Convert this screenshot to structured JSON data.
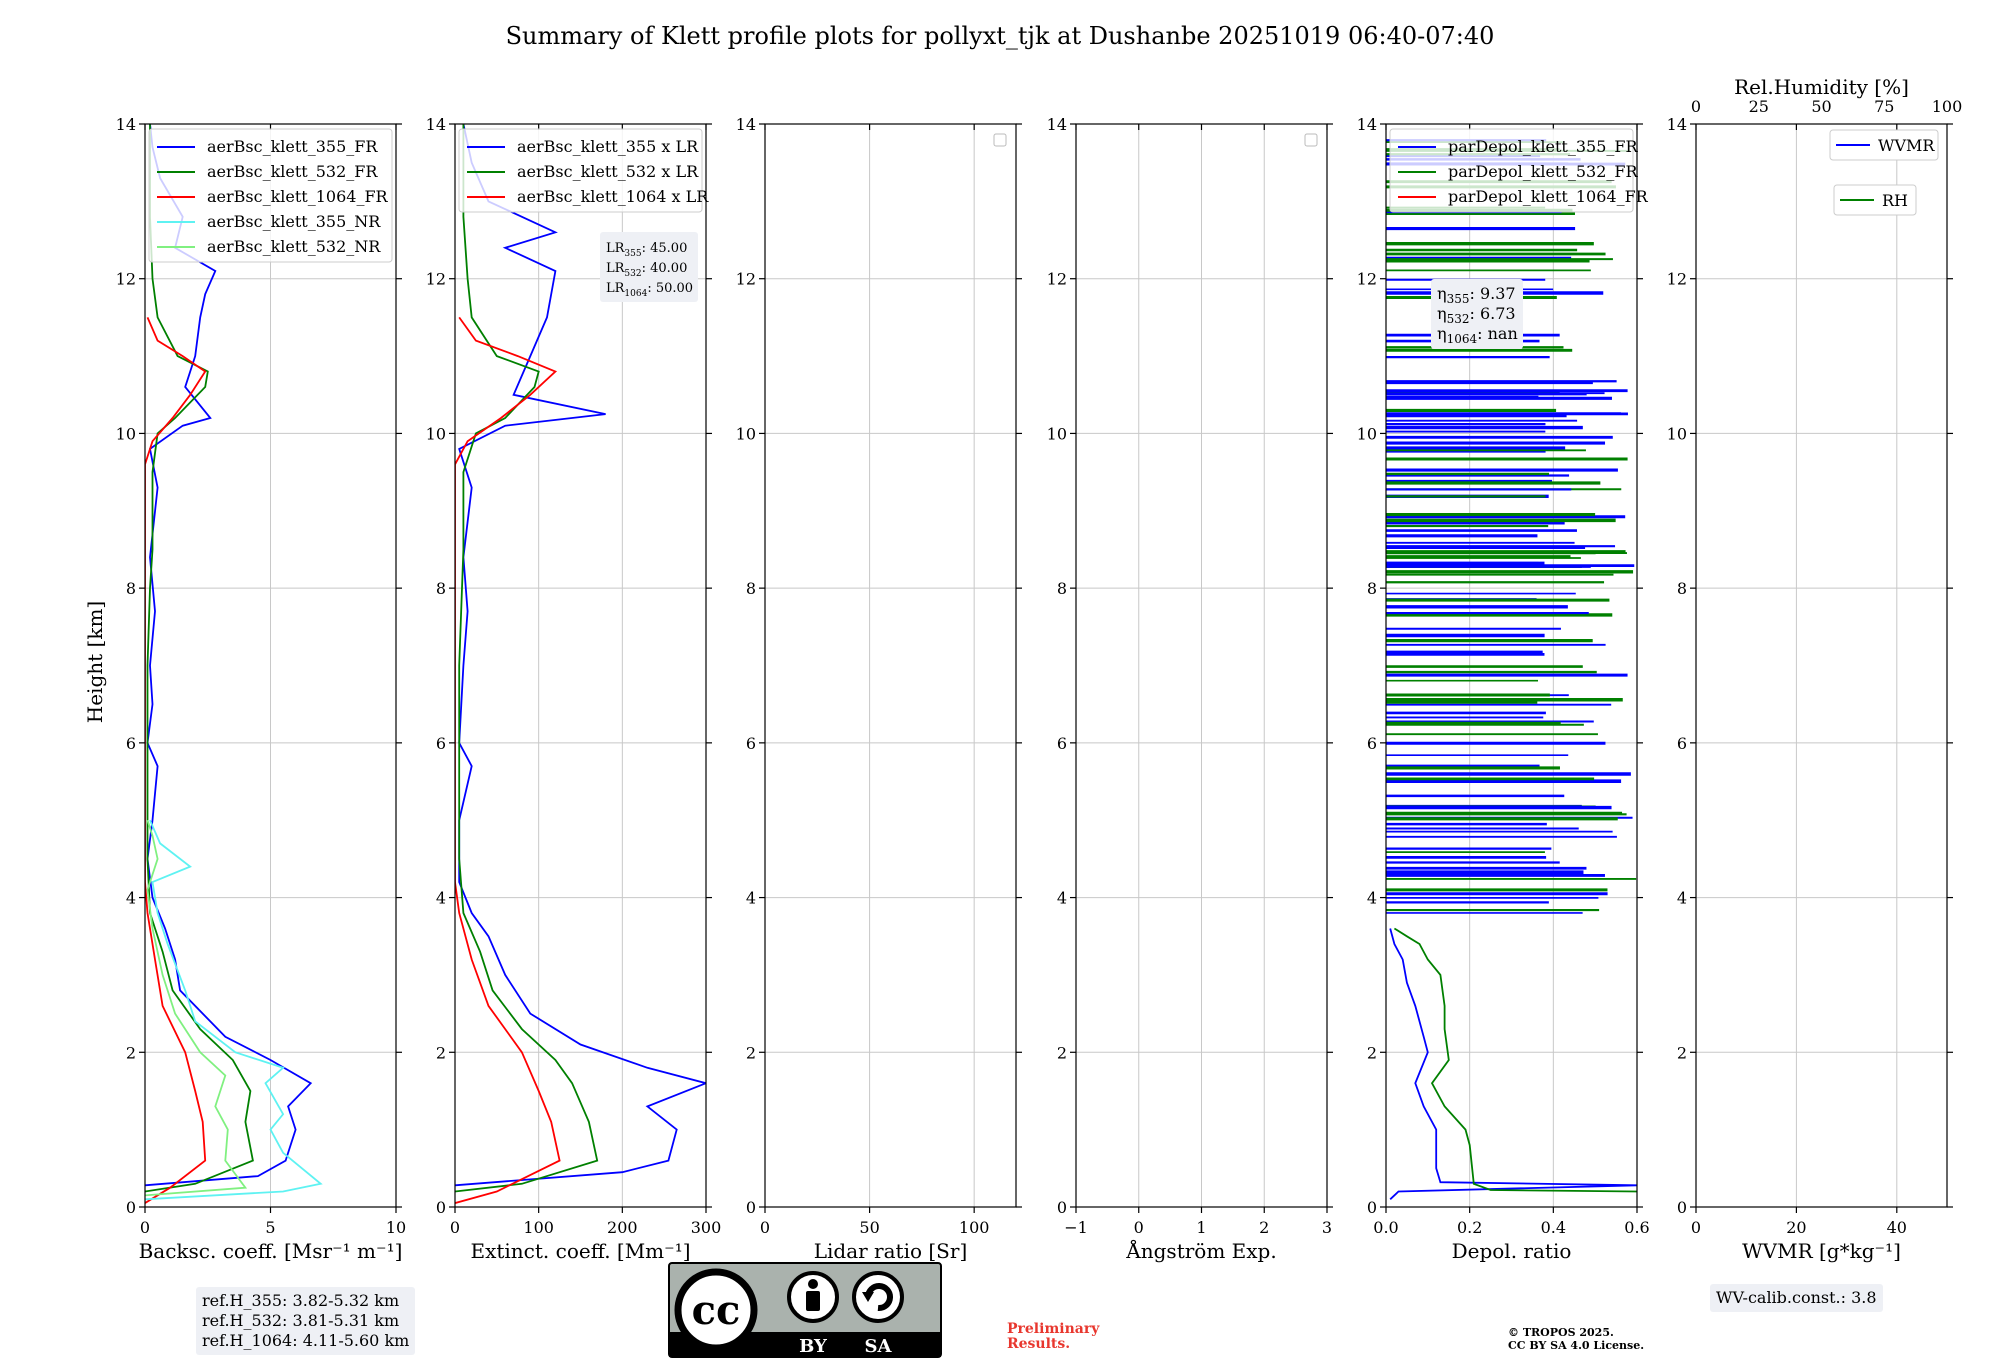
{
  "title": "Summary of Klett profile plots for pollyxt_tjk at Dushanbe 20251019 06:40-07:40",
  "ylabel": "Height [km]",
  "colors": {
    "blue": "#0000ff",
    "green": "#008000",
    "red": "#ff0000",
    "cyan": "#5ef2f2",
    "lightgreen": "#80f080"
  },
  "chart_data": [
    {
      "type": "line",
      "name": "backscatter",
      "xlabel": "Backsc. coeff. [Msr⁻¹ m⁻¹]",
      "xlim": [
        0,
        10
      ],
      "ylim": [
        0,
        14
      ],
      "xticks": [
        "0",
        "5",
        "10"
      ],
      "yticks": [
        "0",
        "2",
        "4",
        "6",
        "8",
        "10",
        "12",
        "14"
      ],
      "legend": [
        "aerBsc_klett_355_FR",
        "aerBsc_klett_532_FR",
        "aerBsc_klett_1064_FR",
        "aerBsc_klett_355_NR",
        "aerBsc_klett_532_NR"
      ],
      "series": [
        {
          "name": "aerBsc_klett_355_FR",
          "color": "#0000ff",
          "points": [
            [
              0,
              0.28
            ],
            [
              4.5,
              0.4
            ],
            [
              5.6,
              0.6
            ],
            [
              6,
              1.0
            ],
            [
              5.7,
              1.3
            ],
            [
              6.6,
              1.6
            ],
            [
              5,
              1.9
            ],
            [
              3.2,
              2.2
            ],
            [
              1.4,
              2.8
            ],
            [
              1.2,
              3.2
            ],
            [
              0.8,
              3.6
            ],
            [
              0.3,
              4.0
            ],
            [
              0.1,
              4.5
            ],
            [
              0.3,
              5.0
            ],
            [
              0.5,
              5.7
            ],
            [
              0.1,
              6.0
            ],
            [
              0.3,
              6.5
            ],
            [
              0.2,
              7.0
            ],
            [
              0.4,
              7.7
            ],
            [
              0.2,
              8.4
            ],
            [
              0.5,
              9.3
            ],
            [
              0.2,
              9.8
            ],
            [
              1.5,
              10.1
            ],
            [
              2.6,
              10.2
            ],
            [
              1.6,
              10.6
            ],
            [
              2,
              11.0
            ],
            [
              2.2,
              11.5
            ],
            [
              2.4,
              11.8
            ],
            [
              2.8,
              12.1
            ],
            [
              1.2,
              12.4
            ],
            [
              1.5,
              12.8
            ],
            [
              0.6,
              13.3
            ],
            [
              0.3,
              13.7
            ],
            [
              0.2,
              14
            ]
          ]
        },
        {
          "name": "aerBsc_klett_532_FR",
          "color": "#008000",
          "points": [
            [
              0,
              0.2
            ],
            [
              2,
              0.3
            ],
            [
              4.3,
              0.6
            ],
            [
              4,
              1.1
            ],
            [
              4.2,
              1.5
            ],
            [
              3.5,
              1.9
            ],
            [
              2.2,
              2.3
            ],
            [
              1.1,
              2.8
            ],
            [
              0.7,
              3.3
            ],
            [
              0.2,
              3.8
            ],
            [
              0.1,
              4.5
            ],
            [
              0.1,
              6
            ],
            [
              0.1,
              7
            ],
            [
              0.2,
              8
            ],
            [
              0.3,
              8.5
            ],
            [
              0.3,
              9.5
            ],
            [
              0.5,
              10.0
            ],
            [
              1.2,
              10.2
            ],
            [
              2.4,
              10.6
            ],
            [
              2.5,
              10.8
            ],
            [
              1.3,
              11.0
            ],
            [
              0.5,
              11.5
            ],
            [
              0.3,
              12.0
            ],
            [
              0.2,
              12.8
            ],
            [
              0.2,
              14
            ]
          ]
        },
        {
          "name": "aerBsc_klett_1064_FR",
          "color": "#ff0000",
          "points": [
            [
              0,
              0.05
            ],
            [
              1,
              0.25
            ],
            [
              2.4,
              0.6
            ],
            [
              2.3,
              1.1
            ],
            [
              2,
              1.5
            ],
            [
              1.6,
              2.0
            ],
            [
              0.7,
              2.6
            ],
            [
              0.4,
              3.2
            ],
            [
              0.1,
              3.8
            ],
            [
              0,
              4.2
            ],
            [
              0,
              9.6
            ],
            [
              0.3,
              9.9
            ],
            [
              1.1,
              10.2
            ],
            [
              1.8,
              10.5
            ],
            [
              2.4,
              10.8
            ],
            [
              1.5,
              11.0
            ],
            [
              0.5,
              11.2
            ],
            [
              0.1,
              11.5
            ]
          ]
        },
        {
          "name": "aerBsc_klett_355_NR",
          "color": "#5ef2f2",
          "points": [
            [
              0,
              0.1
            ],
            [
              5.5,
              0.2
            ],
            [
              7,
              0.3
            ],
            [
              5.5,
              0.7
            ],
            [
              5,
              1.0
            ],
            [
              5.5,
              1.2
            ],
            [
              4.8,
              1.6
            ],
            [
              5.5,
              1.8
            ],
            [
              3.6,
              2.0
            ],
            [
              2,
              2.4
            ],
            [
              1.6,
              2.8
            ],
            [
              0.9,
              3.4
            ],
            [
              0.5,
              3.8
            ],
            [
              0.3,
              4.2
            ],
            [
              1.8,
              4.4
            ],
            [
              0.6,
              4.7
            ],
            [
              0.2,
              5.0
            ]
          ]
        },
        {
          "name": "aerBsc_klett_532_NR",
          "color": "#80f080",
          "points": [
            [
              0,
              0.15
            ],
            [
              4,
              0.25
            ],
            [
              3.2,
              0.6
            ],
            [
              3.3,
              1.0
            ],
            [
              2.8,
              1.3
            ],
            [
              3.2,
              1.7
            ],
            [
              2.2,
              2.0
            ],
            [
              1.2,
              2.5
            ],
            [
              0.7,
              3.0
            ],
            [
              0.3,
              3.6
            ],
            [
              0.1,
              4.1
            ],
            [
              0.5,
              4.5
            ],
            [
              0.3,
              4.8
            ],
            [
              0.1,
              5.0
            ]
          ]
        }
      ],
      "annotation": [
        "ref.H_355: 3.82-5.32 km",
        "ref.H_532: 3.81-5.31 km",
        "ref.H_1064: 4.11-5.60 km"
      ]
    },
    {
      "type": "line",
      "name": "extinction",
      "xlabel": "Extinct. coeff. [Mm⁻¹]",
      "xlim": [
        0,
        300
      ],
      "ylim": [
        0,
        14
      ],
      "xticks": [
        "0",
        "100",
        "200",
        "300"
      ],
      "yticks": [
        "0",
        "2",
        "4",
        "6",
        "8",
        "10",
        "12",
        "14"
      ],
      "legend": [
        "aerBsc_klett_355 x LR",
        "aerBsc_klett_532 x LR",
        "aerBsc_klett_1064 x LR"
      ],
      "series": [
        {
          "name": "aerBsc_klett_355 x LR",
          "color": "#0000ff",
          "points": [
            [
              0,
              0.28
            ],
            [
              200,
              0.45
            ],
            [
              255,
              0.6
            ],
            [
              265,
              1.0
            ],
            [
              230,
              1.3
            ],
            [
              300,
              1.6
            ],
            [
              230,
              1.8
            ],
            [
              150,
              2.1
            ],
            [
              90,
              2.5
            ],
            [
              60,
              3.0
            ],
            [
              40,
              3.5
            ],
            [
              20,
              3.8
            ],
            [
              5,
              4.2
            ],
            [
              5,
              5.0
            ],
            [
              20,
              5.7
            ],
            [
              5,
              6.0
            ],
            [
              10,
              7.0
            ],
            [
              15,
              7.7
            ],
            [
              10,
              8.4
            ],
            [
              20,
              9.3
            ],
            [
              5,
              9.8
            ],
            [
              60,
              10.1
            ],
            [
              180,
              10.25
            ],
            [
              70,
              10.5
            ],
            [
              90,
              11.0
            ],
            [
              110,
              11.5
            ],
            [
              120,
              12.1
            ],
            [
              60,
              12.4
            ],
            [
              120,
              12.6
            ],
            [
              40,
              13.0
            ],
            [
              20,
              13.5
            ],
            [
              10,
              14
            ]
          ]
        },
        {
          "name": "aerBsc_klett_532 x LR",
          "color": "#008000",
          "points": [
            [
              0,
              0.2
            ],
            [
              80,
              0.3
            ],
            [
              170,
              0.6
            ],
            [
              160,
              1.1
            ],
            [
              140,
              1.6
            ],
            [
              120,
              1.9
            ],
            [
              80,
              2.3
            ],
            [
              45,
              2.8
            ],
            [
              30,
              3.3
            ],
            [
              10,
              3.8
            ],
            [
              5,
              4.5
            ],
            [
              5,
              7
            ],
            [
              10,
              8.5
            ],
            [
              10,
              9.5
            ],
            [
              25,
              10.0
            ],
            [
              60,
              10.2
            ],
            [
              95,
              10.6
            ],
            [
              100,
              10.8
            ],
            [
              50,
              11.0
            ],
            [
              20,
              11.5
            ],
            [
              15,
              12.0
            ],
            [
              10,
              12.8
            ],
            [
              10,
              14
            ]
          ]
        },
        {
          "name": "aerBsc_klett_1064 x LR",
          "color": "#ff0000",
          "points": [
            [
              0,
              0.05
            ],
            [
              50,
              0.2
            ],
            [
              125,
              0.6
            ],
            [
              115,
              1.1
            ],
            [
              100,
              1.5
            ],
            [
              80,
              2.0
            ],
            [
              40,
              2.6
            ],
            [
              20,
              3.2
            ],
            [
              5,
              3.8
            ],
            [
              0,
              4.2
            ],
            [
              0,
              9.6
            ],
            [
              15,
              9.9
            ],
            [
              55,
              10.2
            ],
            [
              90,
              10.5
            ],
            [
              120,
              10.8
            ],
            [
              75,
              11.0
            ],
            [
              25,
              11.2
            ],
            [
              5,
              11.5
            ]
          ]
        }
      ],
      "lr_box": [
        {
          "label": "LR",
          "sub": "355",
          "value": ": 45.00"
        },
        {
          "label": "LR",
          "sub": "532",
          "value": ": 40.00"
        },
        {
          "label": "LR",
          "sub": "1064",
          "value": ": 50.00"
        }
      ]
    },
    {
      "type": "line",
      "name": "lidar-ratio",
      "xlabel": "Lidar ratio [Sr]",
      "xlim": [
        0,
        120
      ],
      "ylim": [
        0,
        14
      ],
      "xticks": [
        "0",
        "50",
        "100"
      ],
      "yticks": [
        "0",
        "2",
        "4",
        "6",
        "8",
        "10",
        "12",
        "14"
      ],
      "series": []
    },
    {
      "type": "line",
      "name": "angstrom",
      "xlabel": "Ångström Exp.",
      "xlim": [
        -1,
        3
      ],
      "ylim": [
        0,
        14
      ],
      "xticks": [
        "−1",
        "0",
        "1",
        "2",
        "3"
      ],
      "yticks": [
        "0",
        "2",
        "4",
        "6",
        "8",
        "10",
        "12",
        "14"
      ],
      "series": []
    },
    {
      "type": "line",
      "name": "depol",
      "xlabel": "Depol. ratio",
      "xlim": [
        0,
        0.6
      ],
      "ylim": [
        0,
        14
      ],
      "xticks": [
        "0.0",
        "0.2",
        "0.4",
        "0.6"
      ],
      "yticks": [
        "0",
        "2",
        "4",
        "6",
        "8",
        "10",
        "12",
        "14"
      ],
      "legend": [
        "parDepol_klett_355_FR",
        "parDepol_klett_532_FR",
        "parDepol_klett_1064_FR"
      ],
      "series": [
        {
          "name": "parDepol_klett_355_FR",
          "color": "#0000ff",
          "points": [
            [
              0.01,
              0.1
            ],
            [
              0.03,
              0.2
            ],
            [
              0.6,
              0.28
            ],
            [
              0.13,
              0.32
            ],
            [
              0.12,
              0.5
            ],
            [
              0.12,
              1.0
            ],
            [
              0.09,
              1.3
            ],
            [
              0.07,
              1.6
            ],
            [
              0.1,
              2.0
            ],
            [
              0.09,
              2.2
            ],
            [
              0.07,
              2.6
            ],
            [
              0.05,
              2.9
            ],
            [
              0.04,
              3.2
            ],
            [
              0.02,
              3.4
            ],
            [
              0.01,
              3.6
            ]
          ]
        },
        {
          "name": "parDepol_klett_532_FR",
          "color": "#008000",
          "points": [
            [
              0.6,
              0.2
            ],
            [
              0.25,
              0.22
            ],
            [
              0.21,
              0.3
            ],
            [
              0.2,
              0.8
            ],
            [
              0.19,
              1.0
            ],
            [
              0.14,
              1.3
            ],
            [
              0.11,
              1.6
            ],
            [
              0.15,
              1.9
            ],
            [
              0.14,
              2.3
            ],
            [
              0.14,
              2.6
            ],
            [
              0.13,
              3.0
            ],
            [
              0.1,
              3.2
            ],
            [
              0.08,
              3.4
            ],
            [
              0.05,
              3.5
            ],
            [
              0.02,
              3.6
            ]
          ]
        }
      ],
      "eta_box": [
        {
          "label": "η",
          "sub": "355",
          "value": ": 9.37"
        },
        {
          "label": "η",
          "sub": "532",
          "value": ": 6.73"
        },
        {
          "label": "η",
          "sub": "1064",
          "value": ": nan"
        }
      ]
    },
    {
      "type": "line",
      "name": "wvmr",
      "xlabel": "WVMR [g*kg⁻¹]",
      "xlim": [
        0,
        50
      ],
      "ylim": [
        0,
        14
      ],
      "xticks": [
        "0",
        "20",
        "40"
      ],
      "yticks": [
        "0",
        "2",
        "4",
        "6",
        "8",
        "10",
        "12",
        "14"
      ],
      "top_label": "Rel.Humidity [%]",
      "top_xlim": [
        0,
        100
      ],
      "top_xticks": [
        "0",
        "25",
        "50",
        "75",
        "100"
      ],
      "legend": [
        "WVMR",
        "RH"
      ],
      "series": [],
      "annotation": "WV-calib.const.: 3.8"
    }
  ],
  "footer": {
    "preliminary": [
      "Preliminary",
      "Results."
    ],
    "copyright": [
      "© TROPOS 2025.",
      "CC BY SA 4.0 License."
    ],
    "cc_badge": [
      "BY",
      "SA"
    ],
    "cc_logo": "cc"
  }
}
